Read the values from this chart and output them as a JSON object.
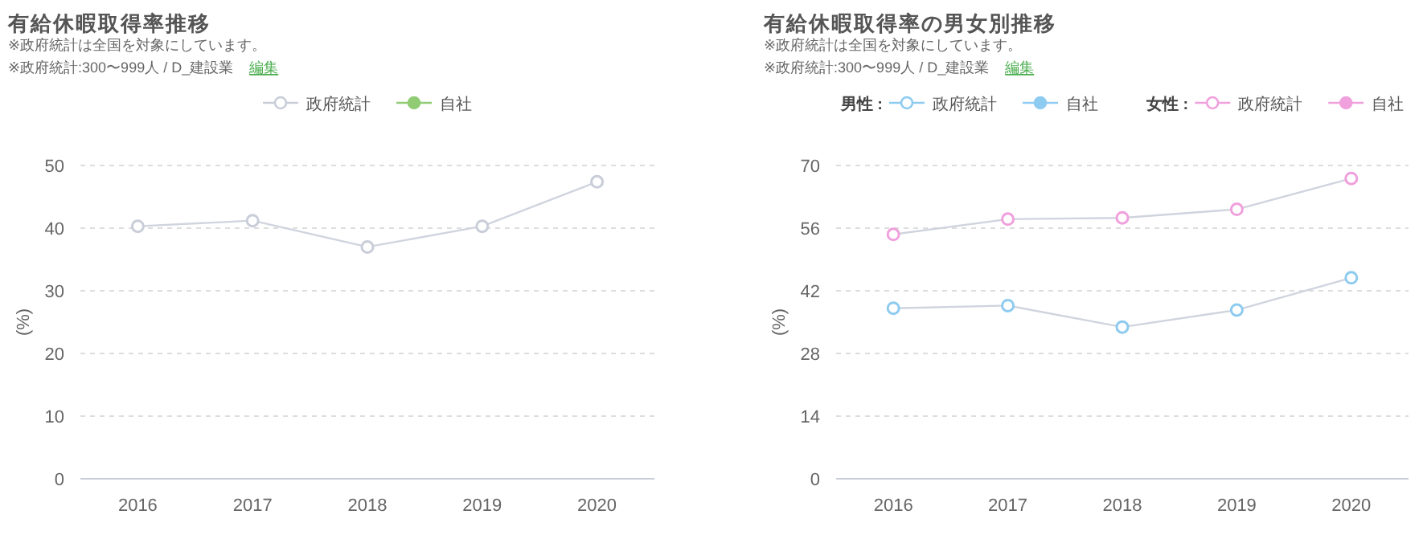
{
  "chart_data": [
    {
      "type": "line",
      "title": "有給休暇取得率推移",
      "subtitle": "※政府統計は全国を対象にしています。",
      "annotations": [
        "※政府統計:300〜999人 / D_建設業",
        "編集"
      ],
      "ylabel": "(%)",
      "categories": [
        "2016",
        "2017",
        "2018",
        "2019",
        "2020"
      ],
      "ylim": [
        0,
        50
      ],
      "yticks": [
        0,
        10,
        20,
        30,
        40,
        50
      ],
      "grid": "y",
      "legend": "top",
      "marker": "circle",
      "line_style": "solid",
      "series": [
        {
          "name": "政府統計",
          "color": "#c8cdd8",
          "values": [
            40.3,
            41.2,
            37.0,
            40.3,
            47.4
          ]
        },
        {
          "name": "自社",
          "color": "#91cc75",
          "values": [
            null,
            null,
            null,
            null,
            null
          ]
        }
      ]
    },
    {
      "type": "line",
      "title": "有給休暇取得率の男女別推移",
      "subtitle": "※政府統計は全国を対象にしています。",
      "annotations": [
        "※政府統計:300〜999人 / D_建設業",
        "編集",
        "男性 :",
        "女性 :"
      ],
      "ylabel": "(%)",
      "categories": [
        "2016",
        "2017",
        "2018",
        "2019",
        "2020"
      ],
      "ylim": [
        0,
        70
      ],
      "yticks": [
        0,
        14,
        28,
        42,
        56,
        70
      ],
      "grid": "y",
      "legend": "top",
      "marker": "circle",
      "line_style": "solid",
      "series": [
        {
          "name": "政府統計",
          "color": "#8ecbf0",
          "values": [
            38.1,
            38.7,
            33.9,
            37.7,
            44.9
          ]
        },
        {
          "name": "自社",
          "color": "#8ecbf0",
          "values": [
            null,
            null,
            null,
            null,
            null
          ]
        },
        {
          "name": "政府統計",
          "color": "#f0a0dc",
          "values": [
            54.6,
            58.0,
            58.3,
            60.2,
            67.1
          ]
        },
        {
          "name": "自社",
          "color": "#f0a0dc",
          "values": [
            null,
            null,
            null,
            null,
            null
          ]
        }
      ]
    }
  ]
}
